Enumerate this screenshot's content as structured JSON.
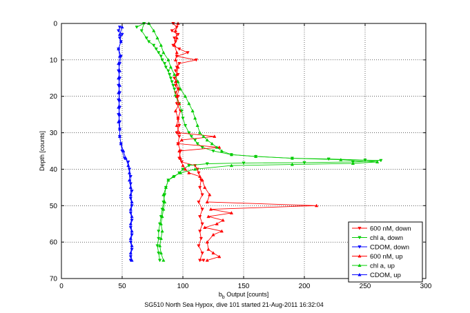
{
  "window": {
    "background": "#ffffff"
  },
  "chart_data": {
    "type": "line",
    "title": "",
    "xlabel_base": "b",
    "xlabel_sub": "b",
    "xlabel_rest": " Output [counts]",
    "ylabel": "Depth [counts]",
    "caption": "SG510 North Sea Hypox, dive 101 started 21-Aug-2011 16:32:04",
    "xlim": [
      0,
      300
    ],
    "ylim": [
      0,
      70
    ],
    "y_inverted": true,
    "grid": true,
    "grid_style": "dotted",
    "legend_position": "bottom-right",
    "xticks": [
      "0",
      "50",
      "100",
      "150",
      "200",
      "250",
      "300"
    ],
    "yticks": [
      "0",
      "10",
      "20",
      "30",
      "40",
      "50",
      "60",
      "70"
    ],
    "series": [
      {
        "name": "600 nM, down",
        "color": "#ff0000",
        "marker": "triangle-down",
        "points": [
          [
            92,
            0
          ],
          [
            95,
            1
          ],
          [
            91,
            2
          ],
          [
            96,
            3
          ],
          [
            93,
            4
          ],
          [
            94,
            5
          ],
          [
            92,
            6
          ],
          [
            97,
            7
          ],
          [
            104,
            8
          ],
          [
            95,
            9
          ],
          [
            111,
            10
          ],
          [
            97,
            11
          ],
          [
            95,
            12
          ],
          [
            94,
            13
          ],
          [
            96,
            14
          ],
          [
            93,
            15
          ],
          [
            95,
            16
          ],
          [
            94,
            17
          ],
          [
            96,
            18
          ],
          [
            94,
            19
          ],
          [
            96,
            20
          ],
          [
            95,
            22
          ],
          [
            98,
            24
          ],
          [
            96,
            26
          ],
          [
            97,
            28
          ],
          [
            95,
            30
          ],
          [
            97,
            31
          ],
          [
            96,
            33
          ],
          [
            98,
            35
          ],
          [
            97,
            37
          ],
          [
            99,
            38
          ],
          [
            110,
            39
          ],
          [
            112,
            40
          ],
          [
            113,
            41
          ],
          [
            115,
            43
          ],
          [
            114,
            45
          ],
          [
            116,
            47
          ],
          [
            113,
            49
          ],
          [
            116,
            51
          ],
          [
            114,
            53
          ],
          [
            116,
            55
          ],
          [
            114,
            57
          ],
          [
            115,
            59
          ],
          [
            113,
            61
          ],
          [
            116,
            63
          ],
          [
            114,
            65
          ],
          [
            117,
            65
          ]
        ]
      },
      {
        "name": "chl a, down",
        "color": "#00cc00",
        "marker": "triangle-down",
        "points": [
          [
            62,
            1
          ],
          [
            68,
            0
          ],
          [
            66,
            2
          ],
          [
            70,
            4
          ],
          [
            72,
            5
          ],
          [
            76,
            6
          ],
          [
            78,
            7
          ],
          [
            80,
            8
          ],
          [
            82,
            9
          ],
          [
            83,
            10
          ],
          [
            85,
            11
          ],
          [
            86,
            12
          ],
          [
            88,
            13
          ],
          [
            89,
            14
          ],
          [
            90,
            15
          ],
          [
            91,
            16
          ],
          [
            92,
            17
          ],
          [
            93,
            18
          ],
          [
            94,
            20
          ],
          [
            97,
            22
          ],
          [
            99,
            24
          ],
          [
            100,
            26
          ],
          [
            102,
            28
          ],
          [
            105,
            30
          ],
          [
            107,
            31
          ],
          [
            110,
            32
          ],
          [
            112,
            33
          ],
          [
            116,
            34
          ],
          [
            125,
            35
          ],
          [
            140,
            36
          ],
          [
            160,
            36.5
          ],
          [
            190,
            37
          ],
          [
            220,
            37.2
          ],
          [
            250,
            37.5
          ],
          [
            263,
            37.6
          ],
          [
            240,
            38
          ],
          [
            200,
            38.2
          ],
          [
            150,
            38.3
          ],
          [
            120,
            38.5
          ],
          [
            105,
            39
          ],
          [
            100,
            40
          ],
          [
            97,
            41
          ],
          [
            93,
            42
          ],
          [
            88,
            43
          ],
          [
            86,
            45
          ],
          [
            85,
            47
          ],
          [
            84,
            49
          ],
          [
            83,
            51
          ],
          [
            82,
            53
          ],
          [
            81,
            55
          ],
          [
            80,
            57
          ],
          [
            80,
            59
          ],
          [
            79,
            61
          ],
          [
            80,
            63
          ],
          [
            81,
            65
          ]
        ]
      },
      {
        "name": "CDOM, down",
        "color": "#0000ff",
        "marker": "triangle-down",
        "points": [
          [
            48,
            1
          ],
          [
            47,
            2
          ],
          [
            50,
            3
          ],
          [
            48,
            4
          ],
          [
            49,
            5
          ],
          [
            47,
            7
          ],
          [
            49,
            9
          ],
          [
            48,
            11
          ],
          [
            47,
            13
          ],
          [
            48,
            15
          ],
          [
            47,
            17
          ],
          [
            48,
            19
          ],
          [
            47,
            21
          ],
          [
            48,
            23
          ],
          [
            47,
            25
          ],
          [
            48,
            27
          ],
          [
            48,
            29
          ],
          [
            48,
            31
          ],
          [
            49,
            33
          ],
          [
            50,
            35
          ],
          [
            52,
            37
          ],
          [
            55,
            38
          ],
          [
            56,
            40
          ],
          [
            57,
            42
          ],
          [
            57,
            44
          ],
          [
            58,
            46
          ],
          [
            57,
            48
          ],
          [
            58,
            50
          ],
          [
            57,
            52
          ],
          [
            58,
            54
          ],
          [
            57,
            56
          ],
          [
            58,
            58
          ],
          [
            57,
            60
          ],
          [
            58,
            62
          ],
          [
            57,
            64
          ],
          [
            57,
            65
          ]
        ]
      },
      {
        "name": "600 nM, up",
        "color": "#ff0000",
        "marker": "triangle-up",
        "points": [
          [
            120,
            65
          ],
          [
            130,
            64
          ],
          [
            125,
            63
          ],
          [
            121,
            62
          ],
          [
            120,
            60
          ],
          [
            125,
            58
          ],
          [
            132,
            57
          ],
          [
            118,
            56
          ],
          [
            128,
            55
          ],
          [
            133,
            54
          ],
          [
            121,
            53
          ],
          [
            140,
            52
          ],
          [
            123,
            51
          ],
          [
            210,
            50
          ],
          [
            120,
            49
          ],
          [
            122,
            47
          ],
          [
            118,
            45
          ],
          [
            116,
            43
          ],
          [
            114,
            42
          ],
          [
            105,
            41
          ],
          [
            102,
            40
          ],
          [
            100,
            39
          ],
          [
            98,
            37
          ],
          [
            97,
            35
          ],
          [
            130,
            34
          ],
          [
            96,
            33
          ],
          [
            99,
            32
          ],
          [
            126,
            31
          ],
          [
            97,
            30
          ],
          [
            95,
            28
          ],
          [
            96,
            26
          ],
          [
            94,
            24
          ],
          [
            97,
            22
          ],
          [
            95,
            20
          ],
          [
            97,
            18
          ],
          [
            94,
            16
          ],
          [
            95,
            14
          ],
          [
            96,
            12
          ],
          [
            94,
            10
          ],
          [
            95,
            8
          ],
          [
            93,
            6
          ],
          [
            95,
            4
          ],
          [
            94,
            2
          ],
          [
            96,
            0
          ]
        ]
      },
      {
        "name": "chl a, up",
        "color": "#00cc00",
        "marker": "triangle-up",
        "points": [
          [
            84,
            65
          ],
          [
            82,
            63
          ],
          [
            81,
            61
          ],
          [
            82,
            59
          ],
          [
            83,
            57
          ],
          [
            82,
            55
          ],
          [
            83,
            53
          ],
          [
            84,
            51
          ],
          [
            85,
            49
          ],
          [
            84,
            47
          ],
          [
            86,
            45
          ],
          [
            88,
            43
          ],
          [
            92,
            42
          ],
          [
            98,
            41
          ],
          [
            110,
            40
          ],
          [
            140,
            39
          ],
          [
            190,
            38.7
          ],
          [
            240,
            38.4
          ],
          [
            260,
            38
          ],
          [
            230,
            37.4
          ],
          [
            190,
            37
          ],
          [
            160,
            36.5
          ],
          [
            140,
            36
          ],
          [
            132,
            35
          ],
          [
            128,
            34
          ],
          [
            124,
            33
          ],
          [
            120,
            32
          ],
          [
            117,
            31
          ],
          [
            114,
            30
          ],
          [
            112,
            28
          ],
          [
            110,
            26
          ],
          [
            108,
            24
          ],
          [
            105,
            22
          ],
          [
            102,
            20
          ],
          [
            98,
            18
          ],
          [
            96,
            16
          ],
          [
            93,
            14
          ],
          [
            90,
            12
          ],
          [
            88,
            10
          ],
          [
            84,
            8
          ],
          [
            82,
            6
          ],
          [
            79,
            4
          ],
          [
            76,
            2
          ],
          [
            72,
            0
          ]
        ]
      },
      {
        "name": "CDOM, up",
        "color": "#0000ff",
        "marker": "triangle-up",
        "points": [
          [
            58,
            65
          ],
          [
            57,
            63
          ],
          [
            58,
            61
          ],
          [
            57,
            59
          ],
          [
            58,
            57
          ],
          [
            57,
            55
          ],
          [
            58,
            53
          ],
          [
            57,
            51
          ],
          [
            58,
            49
          ],
          [
            57,
            47
          ],
          [
            57,
            45
          ],
          [
            56,
            43
          ],
          [
            56,
            41
          ],
          [
            55,
            39
          ],
          [
            53,
            37
          ],
          [
            51,
            35
          ],
          [
            49,
            33
          ],
          [
            48,
            31
          ],
          [
            48,
            29
          ],
          [
            47,
            27
          ],
          [
            48,
            25
          ],
          [
            47,
            23
          ],
          [
            48,
            21
          ],
          [
            47,
            19
          ],
          [
            48,
            17
          ],
          [
            47,
            15
          ],
          [
            48,
            13
          ],
          [
            47,
            11
          ],
          [
            48,
            9
          ],
          [
            47,
            7
          ],
          [
            49,
            5
          ],
          [
            48,
            3
          ],
          [
            50,
            1
          ]
        ]
      }
    ]
  }
}
